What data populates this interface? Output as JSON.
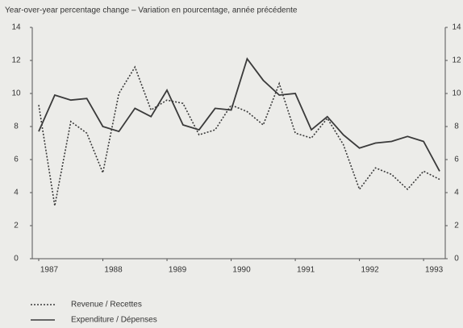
{
  "chart_data": {
    "type": "line",
    "title": "Year-over-year percentage change – Variation en pourcentage, année précédente",
    "x": [
      1987,
      1987.25,
      1987.5,
      1987.75,
      1988,
      1988.25,
      1988.5,
      1988.75,
      1989,
      1989.25,
      1989.5,
      1989.75,
      1990,
      1990.25,
      1990.5,
      1990.75,
      1991,
      1991.25,
      1991.5,
      1991.75,
      1992,
      1992.25,
      1992.5,
      1992.75,
      1993,
      1993.25
    ],
    "series": [
      {
        "name": "Revenue / Recettes",
        "color": "#3a3a3a",
        "dash": true,
        "values": [
          9.3,
          3.2,
          8.3,
          7.6,
          5.2,
          10.0,
          11.6,
          9.0,
          9.6,
          9.4,
          7.5,
          7.8,
          9.3,
          8.9,
          8.1,
          10.6,
          7.6,
          7.3,
          8.5,
          6.9,
          4.2,
          5.5,
          5.1,
          4.2,
          5.3,
          4.8
        ]
      },
      {
        "name": "Expenditure / Dépenses",
        "color": "#3a3a3a",
        "dash": false,
        "values": [
          7.7,
          9.9,
          9.6,
          9.7,
          8.0,
          7.7,
          9.1,
          8.6,
          10.2,
          8.1,
          7.8,
          9.1,
          9.0,
          12.1,
          10.8,
          9.9,
          10.0,
          7.8,
          8.6,
          7.5,
          6.7,
          7.0,
          7.1,
          7.4,
          7.1,
          5.3
        ]
      }
    ],
    "xlim": [
      1987,
      1993.25
    ],
    "xticks": [
      1987,
      1988,
      1989,
      1990,
      1991,
      1992,
      1993
    ],
    "ylim": [
      0,
      14
    ],
    "yticks": [
      0,
      2,
      4,
      6,
      8,
      10,
      12,
      14
    ]
  }
}
